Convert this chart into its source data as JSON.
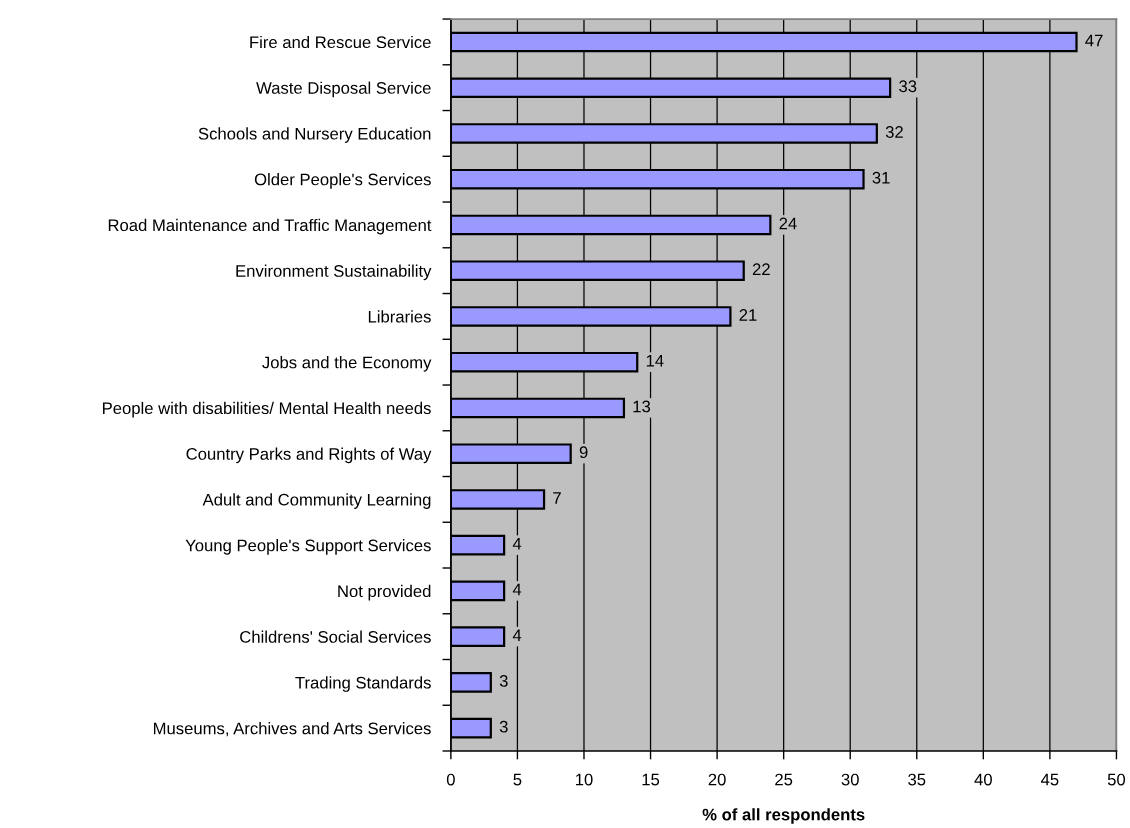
{
  "chart_data": {
    "type": "bar",
    "orientation": "horizontal",
    "categories": [
      "Fire and Rescue Service",
      "Waste Disposal Service",
      "Schools and Nursery Education",
      "Older People's Services",
      "Road Maintenance and Traffic Management",
      "Environment Sustainability",
      "Libraries",
      "Jobs and the Economy",
      "People with disabilities/ Mental Health needs",
      "Country Parks and Rights of Way",
      "Adult and Community Learning",
      "Young People's Support Services",
      "Not provided",
      "Childrens' Social Services",
      "Trading Standards",
      "Museums, Archives and Arts Services"
    ],
    "values": [
      47,
      33,
      32,
      31,
      24,
      22,
      21,
      14,
      13,
      9,
      7,
      4,
      4,
      4,
      3,
      3
    ],
    "color": "#9999ff",
    "xlim": [
      0,
      50
    ],
    "xticks": [
      0,
      5,
      10,
      15,
      20,
      25,
      30,
      35,
      40,
      45,
      50
    ],
    "xlabel": "% of all respondents",
    "grid": "x",
    "data_labels": true
  }
}
